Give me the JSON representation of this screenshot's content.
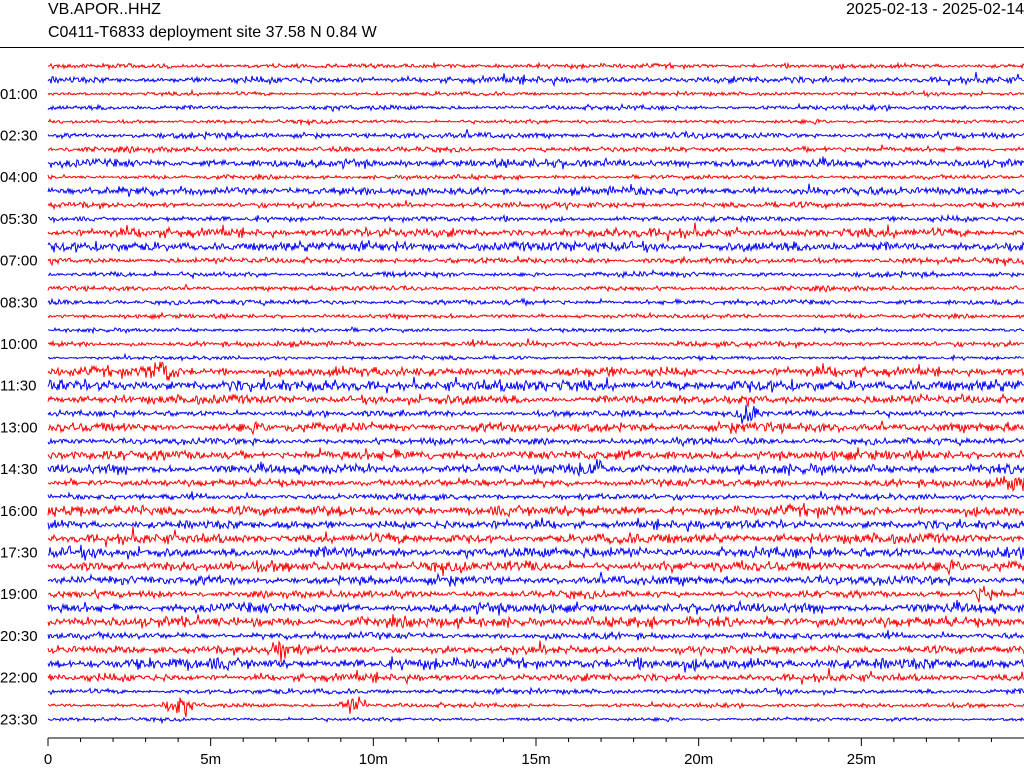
{
  "header": {
    "station": "VB.APOR..HHZ",
    "site": "C0411-T6833 deployment site  37.58 N 0.84 W",
    "dates": "2025-02-13 - 2025-02-14"
  },
  "chart_data": {
    "type": "helicorder",
    "colors": [
      "#ff0000",
      "#0000ff"
    ],
    "rows_per_hour": 2,
    "row_count": 48,
    "y_tick_labels": [
      "01:00",
      "02:30",
      "04:00",
      "05:30",
      "07:00",
      "08:30",
      "10:00",
      "11:30",
      "13:00",
      "14:30",
      "16:00",
      "17:30",
      "19:00",
      "20:30",
      "22:00",
      "23:30"
    ],
    "x_axis": {
      "unit": "minutes",
      "range": [
        0,
        30
      ],
      "major_ticks": [
        0,
        5,
        10,
        15,
        20,
        25
      ],
      "major_labels": [
        "0",
        "5m",
        "10m",
        "15m",
        "20m",
        "25m"
      ],
      "minor_tick_step": 1
    },
    "trace_amplitude": [
      2.0,
      2.8,
      1.6,
      2.0,
      1.6,
      2.5,
      2.2,
      3.5,
      1.8,
      3.5,
      2.4,
      2.2,
      3.8,
      4.2,
      2.4,
      2.2,
      2.0,
      2.2,
      1.8,
      1.6,
      2.2,
      1.6,
      4.0,
      5.0,
      3.8,
      2.5,
      4.0,
      2.8,
      4.2,
      4.0,
      3.2,
      2.5,
      4.5,
      3.8,
      4.2,
      4.5,
      4.5,
      3.8,
      3.0,
      4.2,
      4.5,
      2.8,
      3.5,
      4.8,
      3.2,
      2.2,
      1.8,
      1.5
    ],
    "events": [
      {
        "row": 22,
        "min": 3.5,
        "amp": 8
      },
      {
        "row": 25,
        "min": 21.6,
        "amp": 9
      },
      {
        "row": 30,
        "min": 29.7,
        "amp": 7
      },
      {
        "row": 38,
        "min": 28.8,
        "amp": 8
      },
      {
        "row": 46,
        "min": 4.0,
        "amp": 7
      },
      {
        "row": 46,
        "min": 9.4,
        "amp": 7
      },
      {
        "row": 29,
        "min": 16.8,
        "amp": 8
      },
      {
        "row": 42,
        "min": 7.2,
        "amp": 7
      }
    ]
  }
}
